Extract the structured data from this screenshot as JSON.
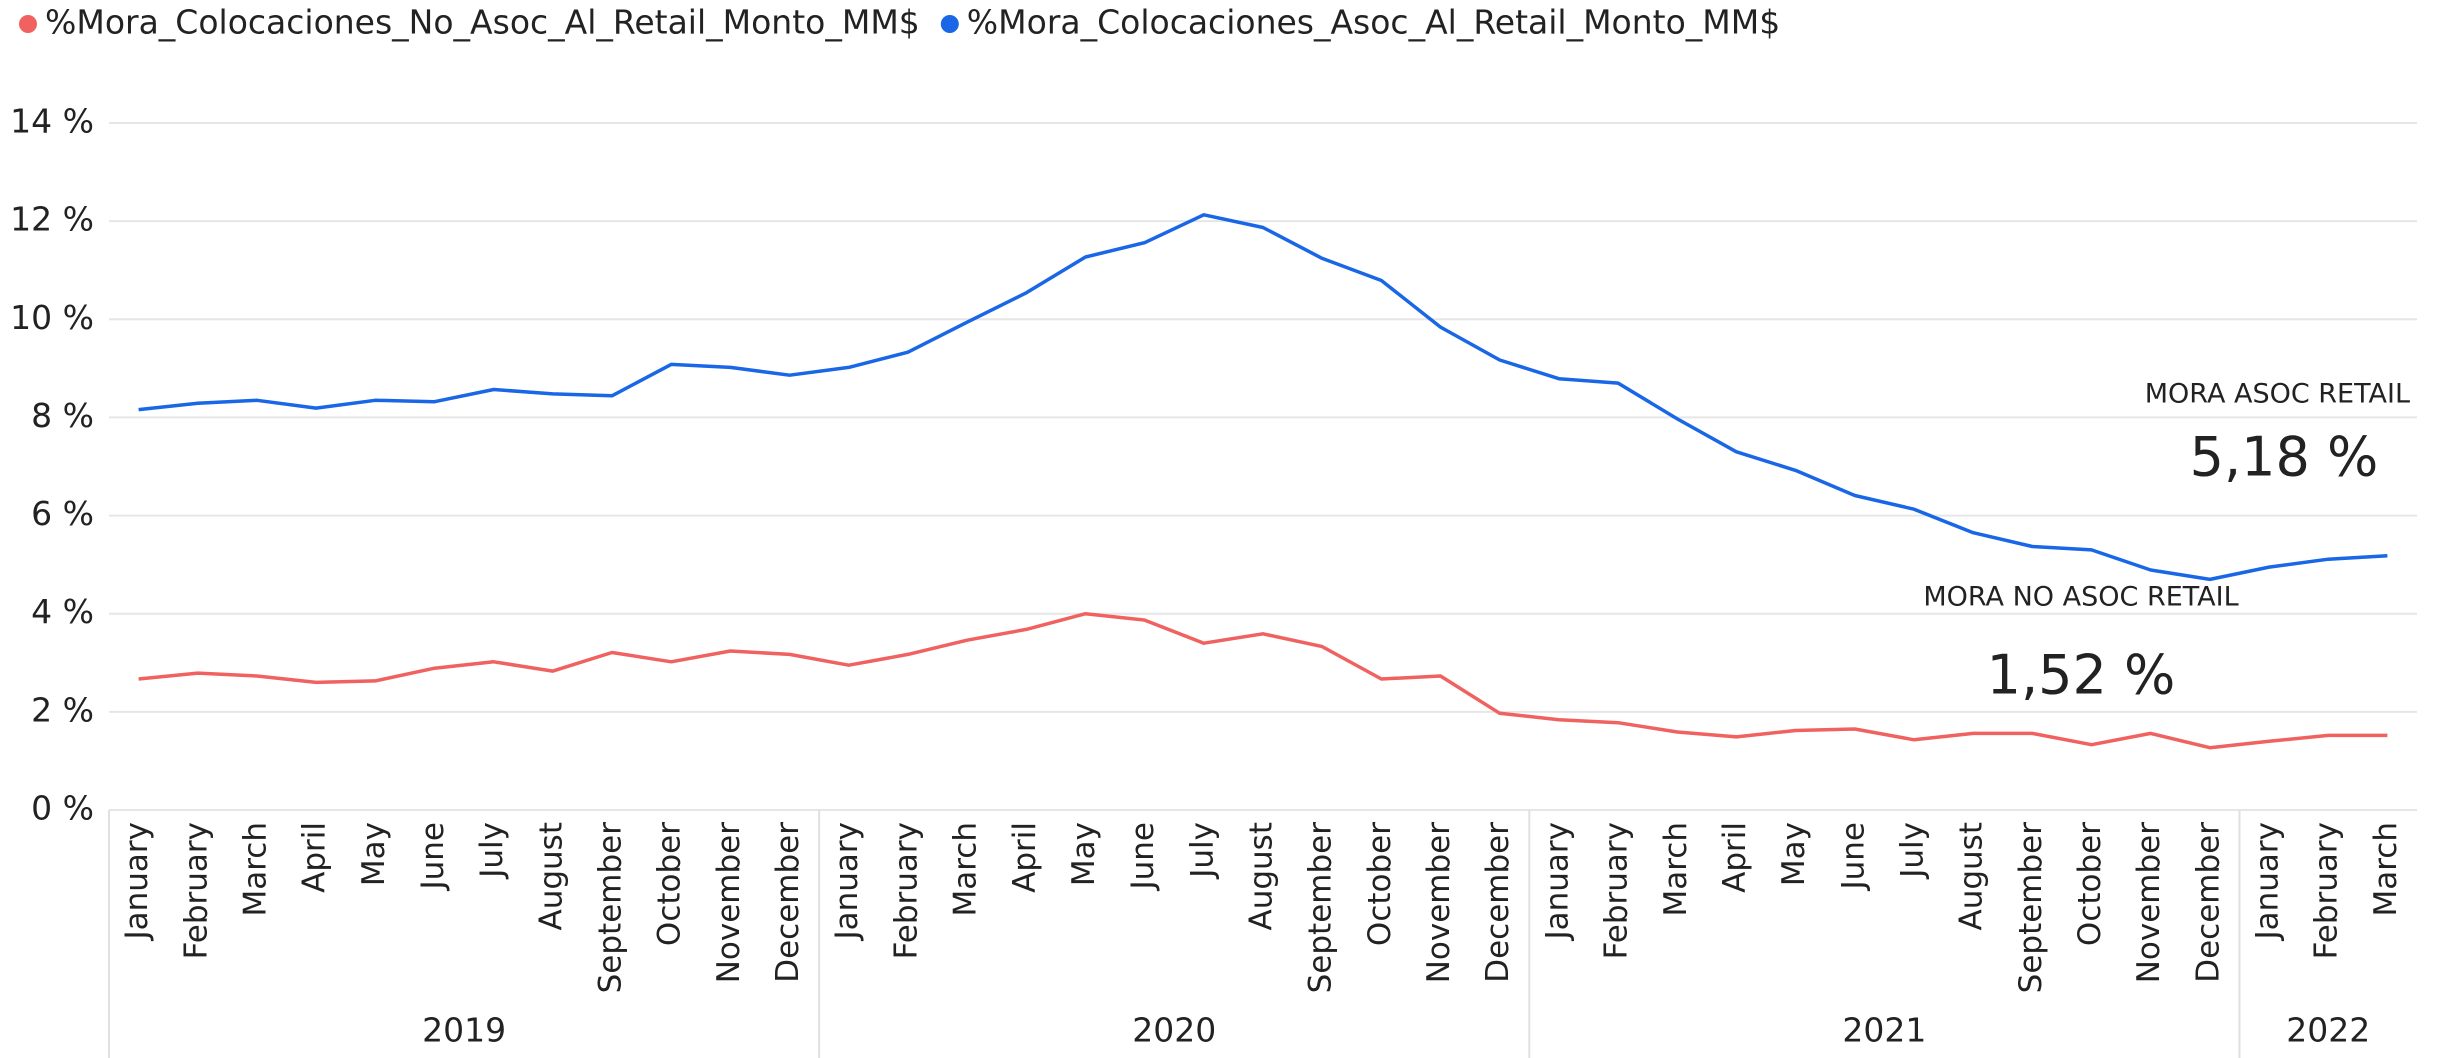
{
  "chart_data": {
    "type": "line",
    "periods": [
      {
        "year": "2019",
        "months": [
          "January",
          "February",
          "March",
          "April",
          "May",
          "June",
          "July",
          "August",
          "September",
          "October",
          "November",
          "December"
        ]
      },
      {
        "year": "2020",
        "months": [
          "January",
          "February",
          "March",
          "April",
          "May",
          "June",
          "July",
          "August",
          "September",
          "October",
          "November",
          "December"
        ]
      },
      {
        "year": "2021",
        "months": [
          "January",
          "February",
          "March",
          "April",
          "May",
          "June",
          "July",
          "August",
          "September",
          "October",
          "November",
          "December"
        ]
      },
      {
        "year": "2022",
        "months": [
          "January",
          "February",
          "March"
        ]
      }
    ],
    "series": [
      {
        "name": "%Mora_Colocaciones_No_Asoc_Al_Retail_Monto_MM$",
        "color": "#f0625f",
        "values": [
          2.67,
          2.79,
          2.73,
          2.6,
          2.63,
          2.89,
          3.02,
          2.83,
          3.21,
          3.02,
          3.24,
          3.17,
          2.95,
          3.17,
          3.46,
          3.68,
          4.0,
          3.87,
          3.4,
          3.59,
          3.33,
          2.67,
          2.73,
          1.97,
          1.84,
          1.78,
          1.59,
          1.49,
          1.62,
          1.65,
          1.43,
          1.56,
          1.56,
          1.33,
          1.56,
          1.27,
          1.4,
          1.52,
          1.52
        ]
      },
      {
        "name": "%Mora_Colocaciones_Asoc_Al_Retail_Monto_MM$",
        "color": "#1967e6",
        "values": [
          8.16,
          8.29,
          8.35,
          8.19,
          8.35,
          8.32,
          8.57,
          8.48,
          8.44,
          9.08,
          9.02,
          8.86,
          9.02,
          9.33,
          9.94,
          10.54,
          11.27,
          11.56,
          12.13,
          11.87,
          11.24,
          10.79,
          9.84,
          9.17,
          8.79,
          8.7,
          7.97,
          7.3,
          6.92,
          6.41,
          6.13,
          5.65,
          5.37,
          5.3,
          4.89,
          4.7,
          4.95,
          5.11,
          5.18
        ]
      }
    ],
    "ylim": [
      0,
      14
    ],
    "yticks": [
      {
        "value": 0,
        "label": "0 %"
      },
      {
        "value": 2,
        "label": "2 %"
      },
      {
        "value": 4,
        "label": "4 %"
      },
      {
        "value": 6,
        "label": "6 %"
      },
      {
        "value": 8,
        "label": "8 %"
      },
      {
        "value": 10,
        "label": "10 %"
      },
      {
        "value": 12,
        "label": "12 %"
      },
      {
        "value": 14,
        "label": "14 %"
      }
    ],
    "grid": true,
    "legend": "top-left",
    "annotations": [
      {
        "title": "MORA ASOC RETAIL",
        "value": 5.18,
        "label": "5,18 %"
      },
      {
        "title": "MORA NO ASOC RETAIL",
        "value": 1.52,
        "label": "1,52 %"
      }
    ]
  }
}
